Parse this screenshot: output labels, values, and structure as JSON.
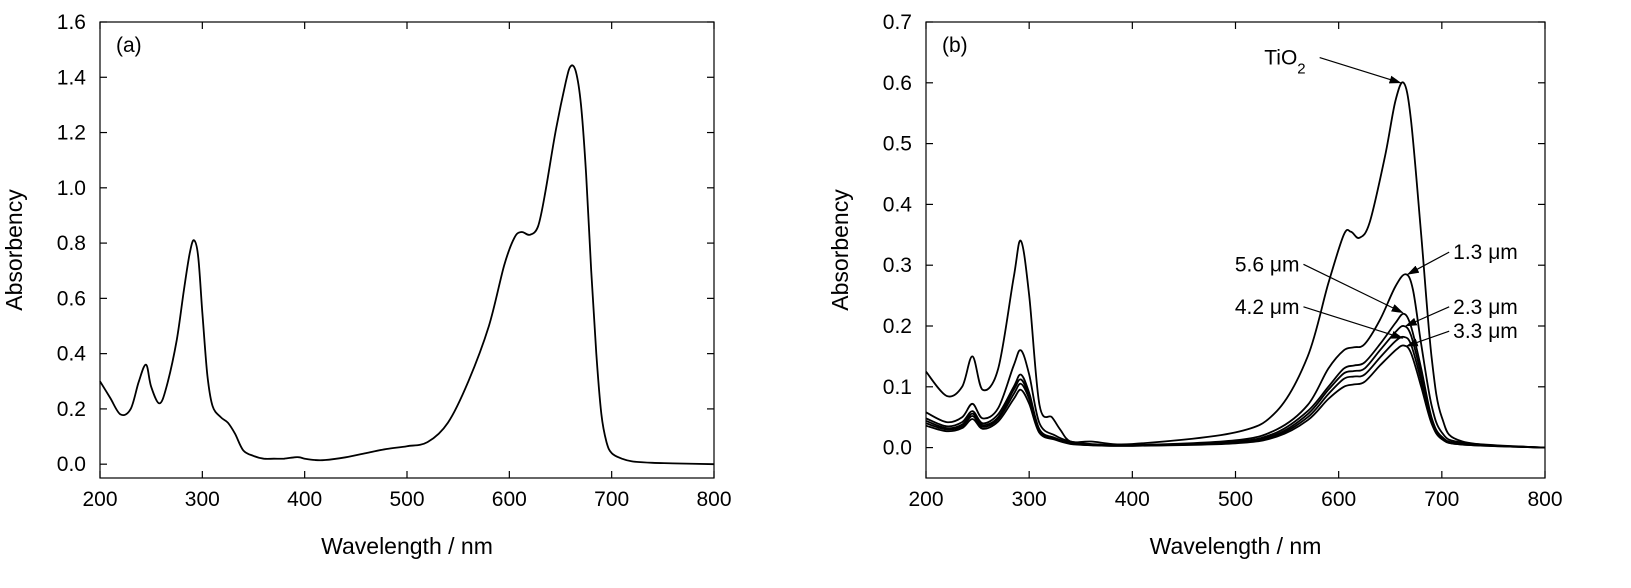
{
  "chart_data": [
    {
      "type": "line",
      "panel_label": "(a)",
      "xlabel": "Wavelength / nm",
      "ylabel": "Absorbency",
      "xlim": [
        200,
        800
      ],
      "ylim": [
        -0.05,
        1.6
      ],
      "xticks": [
        200,
        300,
        400,
        500,
        600,
        700,
        800
      ],
      "xtick_labels": [
        "200",
        "300",
        "400",
        "500",
        "600",
        "700",
        "800"
      ],
      "yticks": [
        0.0,
        0.2,
        0.4,
        0.6,
        0.8,
        1.0,
        1.2,
        1.4,
        1.6
      ],
      "ytick_labels": [
        "0.0",
        "0.2",
        "0.4",
        "0.6",
        "0.8",
        "1.0",
        "1.2",
        "1.4",
        "1.6"
      ],
      "grid": false,
      "series": [
        {
          "color": "#000000",
          "x": [
            200,
            210,
            220,
            230,
            238,
            245,
            250,
            258,
            265,
            275,
            282,
            288,
            292,
            296,
            300,
            305,
            310,
            318,
            325,
            332,
            340,
            350,
            360,
            370,
            380,
            390,
            395,
            400,
            410,
            420,
            440,
            460,
            480,
            500,
            520,
            540,
            560,
            580,
            595,
            605,
            612,
            620,
            628,
            635,
            645,
            655,
            660,
            665,
            670,
            675,
            680,
            685,
            690,
            695,
            700,
            710,
            720,
            740,
            760,
            800
          ],
          "y": [
            0.3,
            0.24,
            0.18,
            0.2,
            0.3,
            0.36,
            0.28,
            0.22,
            0.28,
            0.45,
            0.63,
            0.77,
            0.81,
            0.75,
            0.55,
            0.32,
            0.21,
            0.17,
            0.15,
            0.11,
            0.05,
            0.03,
            0.02,
            0.02,
            0.02,
            0.025,
            0.025,
            0.02,
            0.015,
            0.015,
            0.025,
            0.04,
            0.055,
            0.065,
            0.08,
            0.15,
            0.3,
            0.5,
            0.72,
            0.82,
            0.84,
            0.83,
            0.86,
            0.98,
            1.2,
            1.38,
            1.44,
            1.42,
            1.3,
            1.05,
            0.7,
            0.4,
            0.18,
            0.08,
            0.04,
            0.02,
            0.01,
            0.005,
            0.003,
            0.0
          ]
        }
      ],
      "annotations": []
    },
    {
      "type": "line",
      "panel_label": "(b)",
      "xlabel": "Wavelength / nm",
      "ylabel": "Absorbency",
      "xlim": [
        200,
        800
      ],
      "ylim": [
        -0.05,
        0.7
      ],
      "xticks": [
        200,
        300,
        400,
        500,
        600,
        700,
        800
      ],
      "xtick_labels": [
        "200",
        "300",
        "400",
        "500",
        "600",
        "700",
        "800"
      ],
      "yticks": [
        0.0,
        0.1,
        0.2,
        0.3,
        0.4,
        0.5,
        0.6,
        0.7
      ],
      "ytick_labels": [
        "0.0",
        "0.1",
        "0.2",
        "0.3",
        "0.4",
        "0.5",
        "0.6",
        "0.7"
      ],
      "grid": false,
      "series": [
        {
          "color": "#000000",
          "x": [
            200,
            220,
            235,
            245,
            255,
            270,
            285,
            292,
            300,
            310,
            322,
            330,
            340,
            360,
            400,
            500,
            540,
            570,
            590,
            605,
            612,
            620,
            630,
            645,
            655,
            663,
            670,
            680,
            690,
            700,
            720,
            800
          ],
          "y": [
            0.125,
            0.085,
            0.1,
            0.15,
            0.095,
            0.13,
            0.28,
            0.34,
            0.25,
            0.07,
            0.05,
            0.03,
            0.01,
            0.01,
            0.006,
            0.025,
            0.06,
            0.15,
            0.27,
            0.35,
            0.355,
            0.345,
            0.37,
            0.48,
            0.57,
            0.6,
            0.54,
            0.35,
            0.15,
            0.05,
            0.01,
            0.0
          ]
        },
        {
          "color": "#000000",
          "x": [
            200,
            220,
            235,
            245,
            255,
            270,
            285,
            292,
            300,
            310,
            325,
            340,
            360,
            400,
            500,
            540,
            570,
            590,
            605,
            615,
            625,
            640,
            655,
            665,
            672,
            680,
            690,
            700,
            720,
            800
          ],
          "y": [
            0.058,
            0.042,
            0.05,
            0.072,
            0.048,
            0.065,
            0.135,
            0.16,
            0.12,
            0.04,
            0.02,
            0.01,
            0.006,
            0.004,
            0.012,
            0.03,
            0.07,
            0.13,
            0.16,
            0.165,
            0.17,
            0.21,
            0.265,
            0.285,
            0.26,
            0.17,
            0.07,
            0.025,
            0.008,
            0.0
          ]
        },
        {
          "color": "#000000",
          "x": [
            200,
            220,
            235,
            245,
            255,
            270,
            285,
            292,
            300,
            310,
            325,
            340,
            360,
            400,
            500,
            540,
            570,
            590,
            605,
            615,
            625,
            640,
            655,
            663,
            670,
            680,
            690,
            700,
            720,
            800
          ],
          "y": [
            0.048,
            0.035,
            0.042,
            0.06,
            0.04,
            0.055,
            0.1,
            0.12,
            0.09,
            0.03,
            0.016,
            0.008,
            0.005,
            0.004,
            0.01,
            0.025,
            0.06,
            0.1,
            0.13,
            0.135,
            0.14,
            0.17,
            0.205,
            0.22,
            0.2,
            0.13,
            0.05,
            0.018,
            0.006,
            0.0
          ]
        },
        {
          "color": "#000000",
          "x": [
            200,
            220,
            235,
            245,
            255,
            270,
            285,
            292,
            300,
            310,
            325,
            340,
            360,
            400,
            500,
            540,
            570,
            590,
            605,
            615,
            625,
            640,
            655,
            663,
            670,
            680,
            690,
            700,
            720,
            800
          ],
          "y": [
            0.044,
            0.032,
            0.038,
            0.056,
            0.037,
            0.05,
            0.095,
            0.112,
            0.085,
            0.028,
            0.015,
            0.008,
            0.005,
            0.004,
            0.009,
            0.022,
            0.055,
            0.095,
            0.122,
            0.126,
            0.13,
            0.16,
            0.19,
            0.2,
            0.185,
            0.12,
            0.047,
            0.017,
            0.006,
            0.0
          ]
        },
        {
          "color": "#000000",
          "x": [
            200,
            220,
            235,
            245,
            255,
            270,
            285,
            292,
            300,
            310,
            325,
            340,
            360,
            400,
            500,
            540,
            570,
            590,
            605,
            615,
            625,
            640,
            655,
            663,
            670,
            680,
            690,
            700,
            720,
            800
          ],
          "y": [
            0.04,
            0.03,
            0.035,
            0.052,
            0.034,
            0.047,
            0.088,
            0.105,
            0.08,
            0.026,
            0.014,
            0.007,
            0.004,
            0.003,
            0.008,
            0.02,
            0.05,
            0.088,
            0.113,
            0.117,
            0.12,
            0.148,
            0.175,
            0.182,
            0.17,
            0.11,
            0.043,
            0.015,
            0.005,
            0.0
          ]
        },
        {
          "color": "#000000",
          "x": [
            200,
            220,
            235,
            245,
            255,
            270,
            285,
            292,
            300,
            310,
            325,
            340,
            360,
            400,
            500,
            540,
            570,
            590,
            605,
            615,
            625,
            640,
            655,
            663,
            670,
            680,
            690,
            700,
            720,
            800
          ],
          "y": [
            0.036,
            0.027,
            0.032,
            0.047,
            0.031,
            0.043,
            0.08,
            0.095,
            0.072,
            0.024,
            0.013,
            0.006,
            0.004,
            0.003,
            0.007,
            0.018,
            0.045,
            0.08,
            0.1,
            0.104,
            0.108,
            0.135,
            0.16,
            0.168,
            0.156,
            0.1,
            0.04,
            0.014,
            0.005,
            0.0
          ]
        }
      ],
      "annotations": [
        {
          "text": "TiO",
          "sub": "2",
          "x": 568,
          "y": 0.63,
          "ax": 660,
          "ay": 0.6,
          "anchor": "end"
        },
        {
          "text": "1.3 μm",
          "x": 711,
          "y": 0.31,
          "ax": 667,
          "ay": 0.285,
          "anchor": "start"
        },
        {
          "text": "5.6 μm",
          "x": 562,
          "y": 0.29,
          "ax": 662,
          "ay": 0.222,
          "anchor": "end"
        },
        {
          "text": "2.3 μm",
          "x": 711,
          "y": 0.22,
          "ax": 665,
          "ay": 0.2,
          "anchor": "start"
        },
        {
          "text": "4.2 μm",
          "x": 562,
          "y": 0.22,
          "ax": 662,
          "ay": 0.18,
          "anchor": "end"
        },
        {
          "text": "3.3 μm",
          "x": 711,
          "y": 0.18,
          "ax": 666,
          "ay": 0.167,
          "anchor": "start"
        }
      ]
    }
  ]
}
